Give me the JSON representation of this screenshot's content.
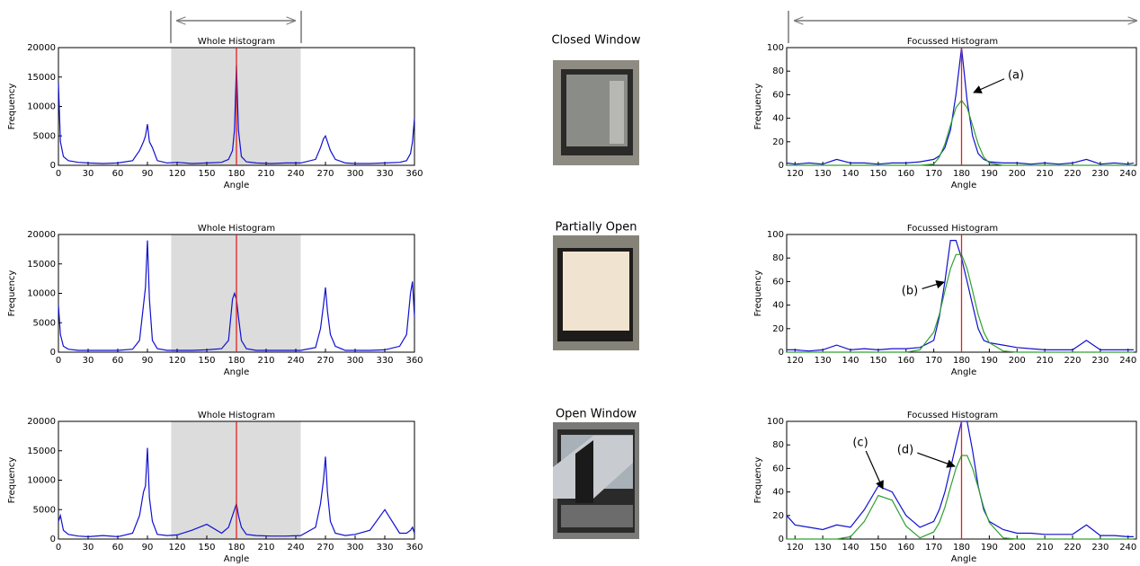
{
  "chart_data": [
    {
      "type": "line",
      "title": "Whole Histogram",
      "xlabel": "Angle",
      "ylabel": "Frequency",
      "xlim": [
        0,
        360
      ],
      "ylim": [
        0,
        20000
      ],
      "xticks": [
        0,
        30,
        60,
        90,
        120,
        150,
        180,
        210,
        240,
        270,
        300,
        330,
        360
      ],
      "yticks": [
        0,
        5000,
        10000,
        15000,
        20000
      ],
      "highlight": [
        114,
        245
      ],
      "marker_x": 180,
      "x": [
        0,
        2,
        5,
        10,
        20,
        30,
        45,
        60,
        75,
        82,
        86,
        88,
        90,
        92,
        95,
        100,
        110,
        120,
        135,
        150,
        165,
        172,
        176,
        178,
        180,
        182,
        185,
        190,
        200,
        215,
        230,
        245,
        260,
        265,
        268,
        270,
        272,
        275,
        280,
        290,
        300,
        315,
        330,
        345,
        352,
        356,
        358,
        360
      ],
      "series": [
        {
          "color": "#1010d0",
          "values": [
            14000,
            4000,
            1500,
            800,
            500,
            400,
            300,
            400,
            800,
            2500,
            4000,
            5000,
            7000,
            4000,
            3000,
            800,
            400,
            500,
            300,
            400,
            500,
            1000,
            2500,
            6000,
            17000,
            6000,
            1500,
            600,
            400,
            300,
            400,
            400,
            1000,
            3000,
            4500,
            5000,
            4000,
            2500,
            1000,
            400,
            300,
            300,
            400,
            500,
            800,
            2000,
            4000,
            8000
          ]
        }
      ]
    },
    {
      "type": "line",
      "title": "Whole Histogram",
      "xlabel": "Angle",
      "ylabel": "Frequency",
      "xlim": [
        0,
        360
      ],
      "ylim": [
        0,
        20000
      ],
      "xticks": [
        0,
        30,
        60,
        90,
        120,
        150,
        180,
        210,
        240,
        270,
        300,
        330,
        360
      ],
      "yticks": [
        0,
        5000,
        10000,
        15000,
        20000
      ],
      "highlight": [
        114,
        245
      ],
      "marker_x": 180,
      "x": [
        0,
        2,
        5,
        10,
        20,
        30,
        45,
        60,
        75,
        82,
        86,
        88,
        90,
        92,
        95,
        100,
        110,
        120,
        135,
        150,
        165,
        172,
        176,
        178,
        180,
        182,
        185,
        190,
        200,
        215,
        230,
        245,
        260,
        265,
        268,
        270,
        272,
        275,
        280,
        290,
        300,
        315,
        330,
        345,
        352,
        356,
        358,
        360
      ],
      "series": [
        {
          "color": "#1010d0",
          "values": [
            8000,
            3000,
            1000,
            500,
            300,
            300,
            300,
            300,
            500,
            2000,
            8000,
            11000,
            19000,
            9000,
            2000,
            600,
            300,
            300,
            300,
            400,
            600,
            2000,
            9000,
            10000,
            9000,
            6000,
            2000,
            600,
            300,
            300,
            300,
            300,
            800,
            4000,
            8000,
            11000,
            7000,
            3000,
            1000,
            300,
            300,
            300,
            400,
            1000,
            3000,
            10000,
            12000,
            6000
          ]
        }
      ]
    },
    {
      "type": "line",
      "title": "Whole Histogram",
      "xlabel": "Angle",
      "ylabel": "Frequency",
      "xlim": [
        0,
        360
      ],
      "ylim": [
        0,
        20000
      ],
      "xticks": [
        0,
        30,
        60,
        90,
        120,
        150,
        180,
        210,
        240,
        270,
        300,
        330,
        360
      ],
      "yticks": [
        0,
        5000,
        10000,
        15000,
        20000
      ],
      "highlight": [
        114,
        245
      ],
      "marker_x": 180,
      "x": [
        0,
        2,
        5,
        10,
        20,
        30,
        45,
        60,
        75,
        82,
        86,
        88,
        90,
        92,
        95,
        100,
        110,
        120,
        135,
        150,
        165,
        172,
        176,
        178,
        180,
        182,
        185,
        190,
        200,
        215,
        230,
        245,
        260,
        265,
        268,
        270,
        272,
        275,
        280,
        290,
        300,
        315,
        330,
        345,
        352,
        356,
        358,
        360
      ],
      "series": [
        {
          "color": "#1010d0",
          "values": [
            3000,
            4000,
            1500,
            800,
            500,
            400,
            600,
            400,
            1000,
            4000,
            8000,
            9000,
            15500,
            7000,
            3000,
            800,
            600,
            700,
            1500,
            2500,
            1000,
            2000,
            4000,
            5000,
            6000,
            4000,
            2000,
            800,
            600,
            500,
            500,
            600,
            2000,
            6000,
            10000,
            14000,
            8000,
            3000,
            1000,
            600,
            800,
            1500,
            5000,
            1000,
            1000,
            1500,
            2000,
            1000
          ]
        }
      ]
    },
    {
      "type": "line",
      "title": "Focussed Histogram",
      "xlabel": "Angle",
      "ylabel": "Frequency",
      "xlim": [
        117,
        243
      ],
      "ylim": [
        0,
        100
      ],
      "xticks": [
        120,
        130,
        140,
        150,
        160,
        170,
        180,
        190,
        200,
        210,
        220,
        230,
        240
      ],
      "yticks": [
        0,
        20,
        40,
        60,
        80,
        100
      ],
      "marker_x": 180,
      "annotations": [
        "(a)"
      ],
      "x": [
        117,
        120,
        125,
        130,
        135,
        140,
        145,
        150,
        155,
        160,
        165,
        170,
        172,
        174,
        176,
        178,
        180,
        182,
        184,
        186,
        188,
        190,
        195,
        200,
        205,
        210,
        215,
        220,
        225,
        230,
        235,
        240,
        242
      ],
      "series": [
        {
          "color": "#1010d0",
          "values": [
            2,
            1,
            2,
            1,
            5,
            2,
            2,
            1,
            2,
            2,
            3,
            5,
            8,
            15,
            30,
            60,
            100,
            55,
            25,
            10,
            5,
            3,
            2,
            2,
            1,
            2,
            1,
            2,
            5,
            1,
            2,
            1,
            2
          ]
        },
        {
          "color": "#30a030",
          "values": [
            0,
            0,
            0,
            0,
            0,
            0,
            0,
            0,
            0,
            0,
            0,
            1,
            7,
            18,
            34,
            49,
            55,
            49,
            34,
            18,
            7,
            2,
            0,
            0,
            0,
            0,
            0,
            0,
            0,
            0,
            0,
            0,
            0
          ]
        }
      ]
    },
    {
      "type": "line",
      "title": "Focussed Histogram",
      "xlabel": "Angle",
      "ylabel": "Frequency",
      "xlim": [
        117,
        243
      ],
      "ylim": [
        0,
        100
      ],
      "xticks": [
        120,
        130,
        140,
        150,
        160,
        170,
        180,
        190,
        200,
        210,
        220,
        230,
        240
      ],
      "yticks": [
        0,
        20,
        40,
        60,
        80,
        100
      ],
      "marker_x": 180,
      "annotations": [
        "(b)"
      ],
      "x": [
        117,
        120,
        125,
        130,
        135,
        140,
        145,
        150,
        155,
        160,
        165,
        170,
        172,
        174,
        176,
        178,
        180,
        182,
        184,
        186,
        188,
        190,
        195,
        200,
        205,
        210,
        215,
        220,
        225,
        230,
        235,
        240,
        242
      ],
      "series": [
        {
          "color": "#1010d0",
          "values": [
            2,
            2,
            1,
            2,
            6,
            2,
            3,
            2,
            3,
            3,
            4,
            10,
            30,
            60,
            95,
            95,
            80,
            60,
            40,
            20,
            10,
            8,
            6,
            4,
            3,
            2,
            2,
            2,
            10,
            2,
            2,
            2,
            2
          ]
        },
        {
          "color": "#30a030",
          "values": [
            0,
            0,
            0,
            0,
            0,
            0,
            0,
            0,
            0,
            0,
            2,
            17,
            32,
            52,
            71,
            83,
            83,
            71,
            52,
            32,
            17,
            8,
            1,
            0,
            0,
            0,
            0,
            0,
            0,
            0,
            0,
            0,
            0
          ]
        }
      ]
    },
    {
      "type": "line",
      "title": "Focussed Histogram",
      "xlabel": "Angle",
      "ylabel": "Frequency",
      "xlim": [
        117,
        243
      ],
      "ylim": [
        0,
        100
      ],
      "xticks": [
        120,
        130,
        140,
        150,
        160,
        170,
        180,
        190,
        200,
        210,
        220,
        230,
        240
      ],
      "yticks": [
        0,
        20,
        40,
        60,
        80,
        100
      ],
      "marker_x": 180,
      "annotations": [
        "(c)",
        "(d)"
      ],
      "x": [
        117,
        120,
        125,
        130,
        135,
        140,
        145,
        150,
        155,
        160,
        165,
        170,
        172,
        174,
        176,
        178,
        180,
        182,
        184,
        186,
        188,
        190,
        195,
        200,
        205,
        210,
        215,
        220,
        225,
        230,
        235,
        240,
        242
      ],
      "series": [
        {
          "color": "#1010d0",
          "values": [
            20,
            12,
            10,
            8,
            12,
            10,
            25,
            45,
            40,
            20,
            10,
            15,
            25,
            40,
            60,
            80,
            100,
            100,
            75,
            45,
            25,
            15,
            8,
            5,
            5,
            4,
            4,
            4,
            12,
            3,
            3,
            2,
            2
          ]
        },
        {
          "color": "#30a030",
          "values": [
            0,
            0,
            0,
            0,
            0,
            2,
            15,
            37,
            33,
            11,
            1,
            6,
            14,
            27,
            44,
            60,
            71,
            71,
            60,
            44,
            27,
            14,
            1,
            0,
            0,
            0,
            0,
            0,
            0,
            0,
            0,
            0,
            0
          ]
        }
      ]
    }
  ],
  "images": [
    {
      "title": "Closed Window"
    },
    {
      "title": "Partially Open"
    },
    {
      "title": "Open Window"
    }
  ]
}
